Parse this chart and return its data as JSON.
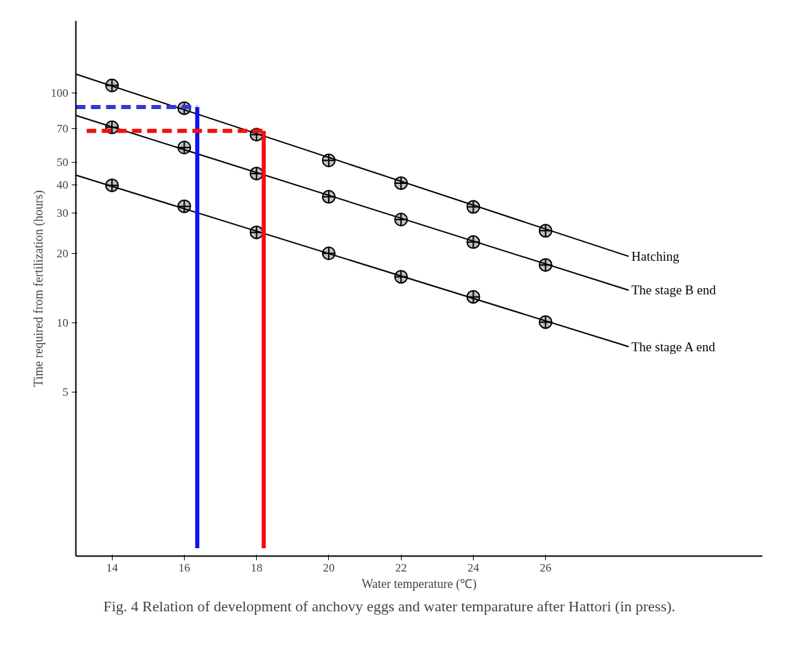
{
  "chart_data": {
    "type": "scatter",
    "xlabel": "Water temperature (℃)",
    "ylabel": "Time required from fertilization (hours)",
    "annotations": [
      "Fig. 4  Relation of development of anchovy eggs and water temparature after Hattori (in press)."
    ],
    "log": "y",
    "grid": false,
    "xlim": [
      13,
      32
    ],
    "ylim": [
      0.97,
      206
    ],
    "xticks": [
      14,
      16,
      18,
      20,
      22,
      24,
      26
    ],
    "yticks": [
      5,
      10,
      20,
      30,
      40,
      50,
      70,
      100
    ],
    "x": [
      14,
      16,
      18,
      20,
      22,
      24,
      26
    ],
    "series": [
      {
        "color": "#000000",
        "marker": "circle",
        "values": [
          108,
          86,
          66,
          51,
          40.6,
          32,
          25.2
        ]
      },
      {
        "color": "#000000",
        "marker": "circle",
        "values": [
          71,
          58,
          44.7,
          35.4,
          28.2,
          22.5,
          17.9
        ]
      },
      {
        "color": "#000000",
        "marker": "circle",
        "values": [
          39.7,
          32.2,
          24.8,
          20.1,
          15.9,
          13,
          10.1
        ]
      },
      {
        "type": "line",
        "name": "Hatching",
        "color": "#000000",
        "line_style": "solid",
        "x": [
          13,
          28.3
        ],
        "values": [
          121,
          19.5
        ]
      },
      {
        "type": "line",
        "name": "The stage B end",
        "color": "#000000",
        "line_style": "solid",
        "x": [
          13,
          28.3
        ],
        "values": [
          80,
          13.9
        ]
      },
      {
        "type": "line",
        "name": "The stage A end",
        "color": "#000000",
        "line_style": "solid",
        "x": [
          13,
          28.3
        ],
        "values": [
          44,
          7.9
        ]
      },
      {
        "type": "line",
        "color": "#2e3bd6",
        "line_style": "dashed",
        "x": [
          13,
          16.36
        ],
        "values": [
          87,
          87
        ]
      },
      {
        "type": "line",
        "color": "#1010f0",
        "line_style": "solid",
        "x": [
          16.36,
          16.36
        ],
        "values": [
          87,
          1.05
        ]
      },
      {
        "type": "line",
        "color": "#f01010",
        "line_style": "dashed",
        "x": [
          13.3,
          18.2
        ],
        "values": [
          68.5,
          68.5
        ]
      },
      {
        "type": "line",
        "color": "#f01010",
        "line_style": "solid",
        "x": [
          18.2,
          18.2
        ],
        "values": [
          68.5,
          1.05
        ]
      }
    ]
  }
}
